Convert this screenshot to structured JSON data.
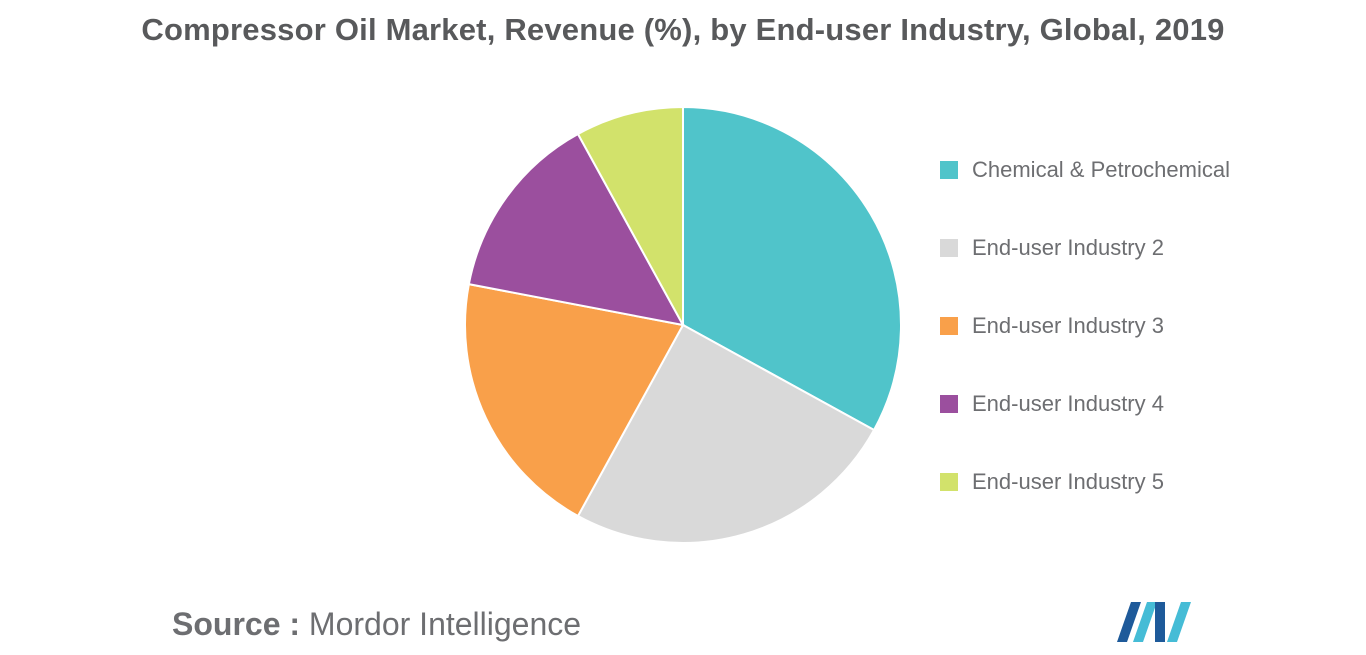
{
  "chart_data": {
    "type": "pie",
    "title": "Compressor Oil Market, Revenue (%), by End-user Industry, Global, 2019",
    "categories": [
      "Chemical & Petrochemical",
      "End-user Industry 2",
      "End-user Industry 3",
      "End-user Industry 4",
      "End-user Industry 5"
    ],
    "values": [
      33,
      25,
      20,
      14,
      8
    ],
    "colors": [
      "#50c4ca",
      "#d9d9d9",
      "#f9a04a",
      "#9b4f9e",
      "#d2e26b"
    ],
    "legend_placement": "right"
  },
  "source": {
    "label": "Source :",
    "text": "Mordor Intelligence"
  },
  "logo": {
    "icon": "mordor-intelligence-logo",
    "colors": [
      "#1e5a9a",
      "#45bcd6"
    ]
  }
}
